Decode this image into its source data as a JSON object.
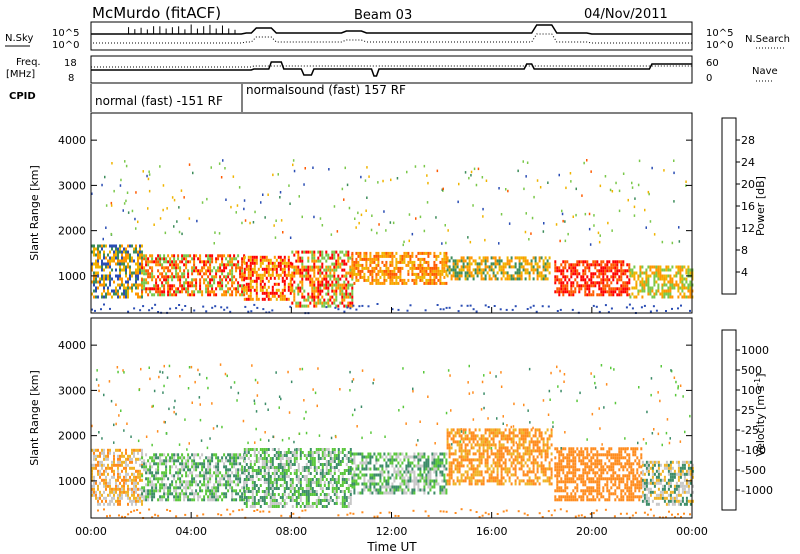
{
  "header": {
    "station": "McMurdo (fitACF)",
    "beam": "Beam 03",
    "date": "04/Nov/2011"
  },
  "noise_panel": {
    "left_label": "N.Sky",
    "right_label": "N.Search",
    "left_ticks": [
      "10^5",
      "10^0"
    ],
    "right_ticks": [
      "10^5",
      "10^0"
    ]
  },
  "freq_panel": {
    "left_label_1": "Freq.",
    "left_label_2": "[MHz]",
    "right_label": "Nave",
    "left_ticks": [
      "18",
      "8"
    ],
    "right_ticks": [
      "60",
      "0"
    ]
  },
  "cpid": {
    "label": "CPID",
    "programs": [
      {
        "name": "normal (fast) -151 RF",
        "start_hour": 0,
        "end_hour": 6.05
      },
      {
        "name": "normalsound (fast) 157 RF",
        "start_hour": 6.05,
        "end_hour": 24
      }
    ]
  },
  "power_colorbar": {
    "label": "Power [dB]",
    "ticks": [
      "28",
      "24",
      "20",
      "16",
      "12",
      "8",
      "4"
    ],
    "colors": [
      "#ff0000",
      "#ff5a00",
      "#ff9600",
      "#f0b400",
      "#7ac84a",
      "#3c8c5a",
      "#2a4db4",
      "#1010ff"
    ]
  },
  "velocity_colorbar": {
    "label": "Velocity [m s",
    "label_sup": "-1",
    "label_end": "]",
    "ticks": [
      "1000",
      "500",
      "100",
      "25",
      "-25",
      "-100",
      "-500",
      "-1000"
    ],
    "colors": [
      "#1c2ea0",
      "#2b5aa8",
      "#3c8c68",
      "#5ac83c",
      "#c8c8c8",
      "#f0b428",
      "#ff8c1e",
      "#ff5a14",
      "#ff0000"
    ]
  },
  "chart_data": [
    {
      "type": "heatmap",
      "name": "power",
      "ylabel": "Slant Range [km]",
      "ylim": [
        180,
        4600
      ],
      "yticks": [
        1000,
        2000,
        3000,
        4000
      ],
      "xlim": [
        0,
        24
      ],
      "scatter_bands": [
        {
          "x0": 0.0,
          "x1": 2.0,
          "r0": 500,
          "r1": 1650,
          "levels": [
            6,
            10,
            16,
            22
          ]
        },
        {
          "x0": 2.0,
          "x1": 6.1,
          "r0": 550,
          "r1": 1450,
          "levels": [
            14,
            20,
            26,
            30
          ]
        },
        {
          "x0": 6.1,
          "x1": 8.0,
          "r0": 450,
          "r1": 1400,
          "levels": [
            16,
            22,
            28
          ]
        },
        {
          "x0": 8.0,
          "x1": 10.4,
          "r0": 300,
          "r1": 1500,
          "levels": [
            14,
            22,
            28
          ]
        },
        {
          "x0": 10.4,
          "x1": 14.2,
          "r0": 800,
          "r1": 1500,
          "levels": [
            16,
            20,
            24
          ]
        },
        {
          "x0": 14.2,
          "x1": 18.3,
          "r0": 900,
          "r1": 1400,
          "levels": [
            10,
            16,
            20
          ]
        },
        {
          "x0": 18.5,
          "x1": 21.5,
          "r0": 550,
          "r1": 1300,
          "levels": [
            26,
            30
          ]
        },
        {
          "x0": 21.5,
          "x1": 24.0,
          "r0": 500,
          "r1": 1200,
          "levels": [
            12,
            18,
            22
          ]
        }
      ]
    },
    {
      "type": "heatmap",
      "name": "velocity",
      "ylabel": "Slant Range [km]",
      "xlabel": "Time UT",
      "ylim": [
        180,
        4600
      ],
      "yticks": [
        1000,
        2000,
        3000,
        4000
      ],
      "xlim": [
        0,
        24
      ],
      "xticks": [
        "00:00",
        "04:00",
        "08:00",
        "12:00",
        "16:00",
        "20:00",
        "00:00"
      ],
      "scatter_bands": [
        {
          "x0": 0.0,
          "x1": 2.0,
          "r0": 450,
          "r1": 1700,
          "levels": [
            -150,
            -60,
            0
          ]
        },
        {
          "x0": 2.0,
          "x1": 6.1,
          "r0": 550,
          "r1": 1600,
          "levels": [
            60,
            150,
            0
          ]
        },
        {
          "x0": 6.1,
          "x1": 10.4,
          "r0": 400,
          "r1": 1700,
          "levels": [
            150,
            60,
            0
          ]
        },
        {
          "x0": 10.4,
          "x1": 14.2,
          "r0": 700,
          "r1": 1600,
          "levels": [
            60,
            0,
            150
          ]
        },
        {
          "x0": 14.2,
          "x1": 18.4,
          "r0": 900,
          "r1": 2100,
          "levels": [
            -200,
            -150,
            -60
          ]
        },
        {
          "x0": 18.5,
          "x1": 22.0,
          "r0": 550,
          "r1": 1700,
          "levels": [
            -150,
            -200
          ]
        },
        {
          "x0": 22.0,
          "x1": 24.0,
          "r0": 450,
          "r1": 1400,
          "levels": [
            150,
            0,
            -60
          ]
        }
      ]
    }
  ]
}
